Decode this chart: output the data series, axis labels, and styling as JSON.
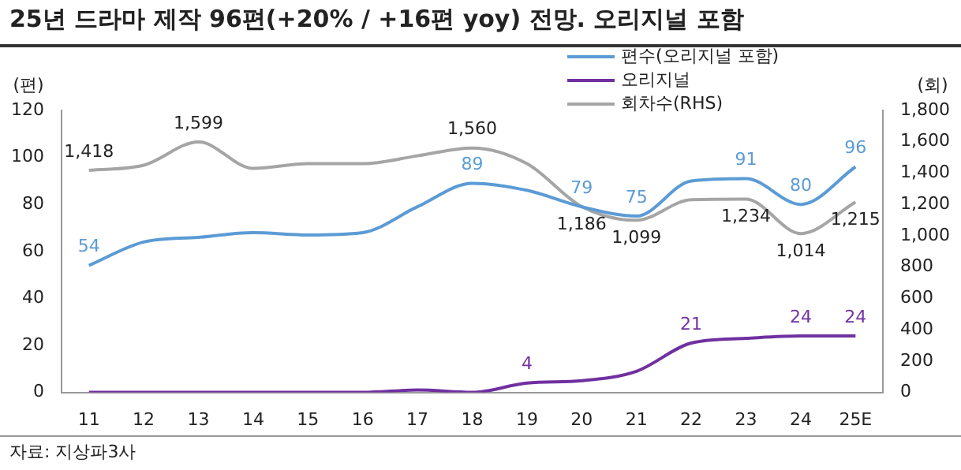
{
  "chart_data": {
    "type": "line",
    "title": "25년 드라마 제작 96편(+20% / +16편 yoy) 전망. 오리지널 포함",
    "ylabel": "(편)",
    "y2label": "(회)",
    "categories": [
      "11",
      "12",
      "13",
      "14",
      "15",
      "16",
      "17",
      "18",
      "19",
      "20",
      "21",
      "22",
      "23",
      "24",
      "25E"
    ],
    "series": [
      {
        "name": "편수(오리지널 포함)",
        "color": "#5b9bd5",
        "values": [
          54,
          64,
          66,
          68,
          67,
          68,
          79,
          89,
          86,
          79,
          75,
          90,
          91,
          80,
          96
        ],
        "value_labels": [
          "54",
          null,
          null,
          null,
          null,
          null,
          null,
          "89",
          null,
          "79",
          "75",
          null,
          "91",
          "80",
          "96"
        ]
      },
      {
        "name": "오리지널",
        "color": "#7030a0",
        "values": [
          0,
          0,
          0,
          0,
          0,
          0,
          1,
          0,
          4,
          5,
          9,
          21,
          23,
          24,
          24
        ],
        "value_labels": [
          null,
          null,
          null,
          null,
          null,
          null,
          null,
          null,
          "4",
          null,
          null,
          "21",
          null,
          "24",
          "24"
        ]
      },
      {
        "name": "회차수(RHS)",
        "color": "#a5a5a5",
        "axis": "y2",
        "values": [
          1418,
          1450,
          1599,
          1430,
          1460,
          1460,
          1510,
          1560,
          1460,
          1186,
          1099,
          1230,
          1234,
          1014,
          1215
        ],
        "value_labels": [
          "1,418",
          null,
          "1,599",
          null,
          null,
          null,
          null,
          "1,560",
          null,
          "1,186",
          "1,099",
          null,
          "1,234",
          "1,014",
          "1,215"
        ]
      }
    ],
    "ylim": [
      0,
      120
    ],
    "yticks": [
      0,
      20,
      40,
      60,
      80,
      100,
      120
    ],
    "y2lim": [
      0,
      1800
    ],
    "y2ticks": [
      0,
      {
        "value": 200,
        "label": "200"
      },
      {
        "value": 400,
        "label": "400"
      },
      {
        "value": 600,
        "label": "600"
      },
      {
        "value": 800,
        "label": "800"
      },
      {
        "value": 1000,
        "label": "1,000"
      },
      {
        "value": 1200,
        "label": "1,200"
      },
      {
        "value": 1400,
        "label": "1,400"
      },
      {
        "value": 1600,
        "label": "1,600"
      },
      {
        "value": 1800,
        "label": "1,800"
      }
    ],
    "grid": false,
    "legend": "top right",
    "marker": "none",
    "line_style": "solid",
    "annotations": [
      "자료: 지상파3사"
    ]
  }
}
